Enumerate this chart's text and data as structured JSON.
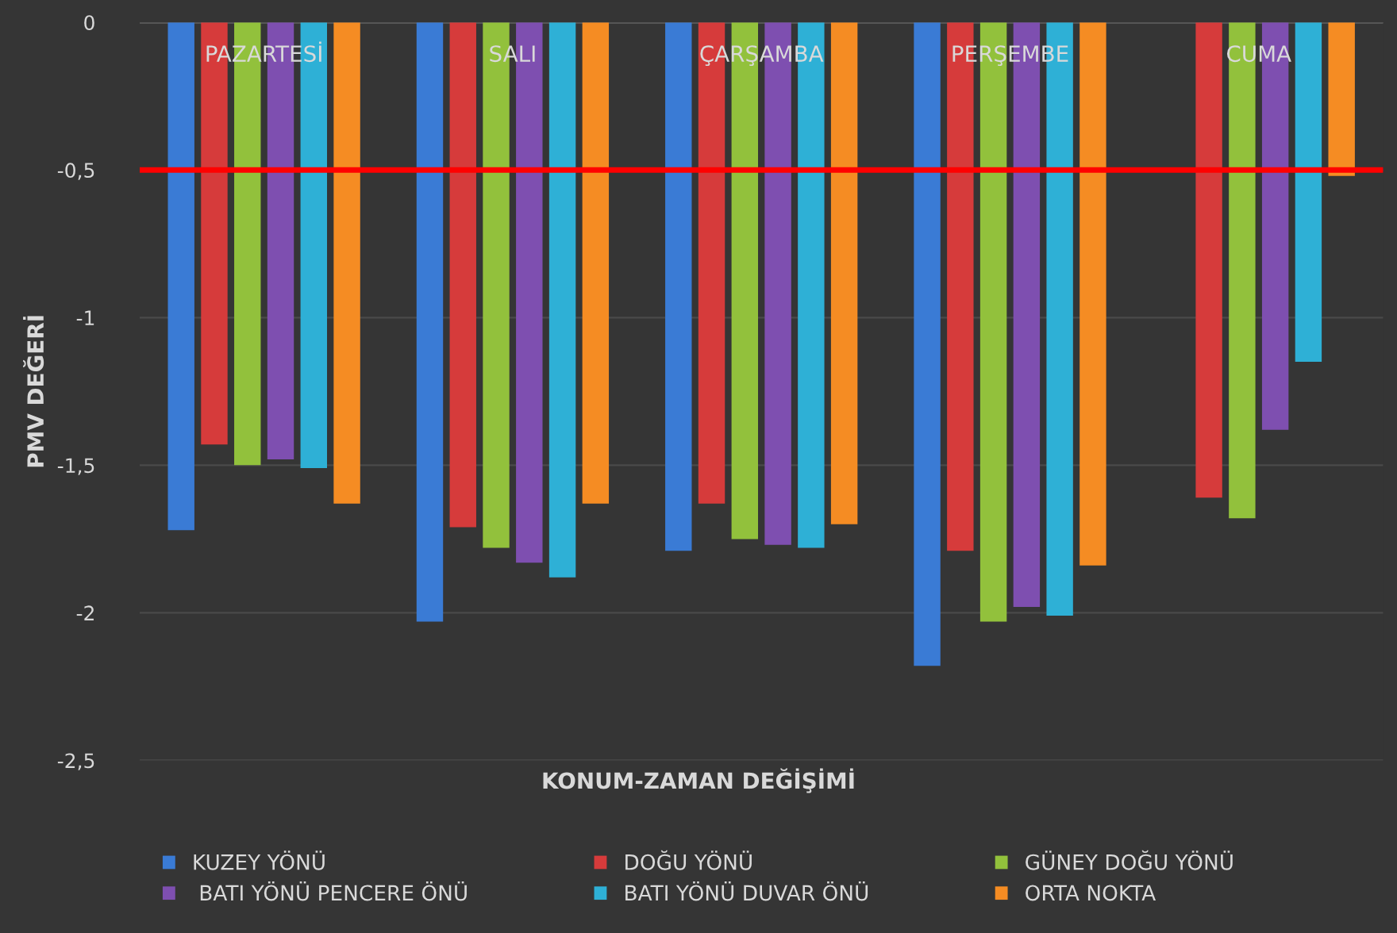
{
  "chart_data": {
    "type": "bar",
    "xlabel": "KONUM-ZAMAN DEĞİŞİMİ",
    "ylabel": "PMV DEĞERİ",
    "categories": [
      "PAZARTESİ",
      "SALI",
      "ÇARŞAMBA",
      "PERŞEMBE",
      "CUMA"
    ],
    "series": [
      {
        "name": "KUZEY YÖNÜ",
        "color": "#3a7bd5",
        "values": [
          -1.72,
          -2.03,
          -1.79,
          -2.18,
          null
        ]
      },
      {
        "name": "DOĞU YÖNÜ",
        "color": "#d63b3b",
        "values": [
          -1.43,
          -1.71,
          -1.63,
          -1.79,
          -1.61
        ]
      },
      {
        "name": "GÜNEY DOĞU YÖNÜ",
        "color": "#92c13c",
        "values": [
          -1.5,
          -1.78,
          -1.75,
          -2.03,
          -1.68
        ]
      },
      {
        "name": " BATI YÖNÜ PENCERE ÖNÜ",
        "color": "#7e4fb0",
        "values": [
          -1.48,
          -1.83,
          -1.77,
          -1.98,
          -1.38
        ]
      },
      {
        "name": "BATI YÖNÜ DUVAR ÖNÜ",
        "color": "#2eb0d6",
        "values": [
          -1.51,
          -1.88,
          -1.78,
          -2.01,
          -1.15
        ]
      },
      {
        "name": "ORTA NOKTA",
        "color": "#f58c23",
        "values": [
          -1.63,
          -1.63,
          -1.7,
          -1.84,
          -0.52
        ]
      }
    ],
    "ylim": [
      -2.5,
      0
    ],
    "yticks": [
      {
        "value": -2.5,
        "label": "-2,5"
      },
      -2,
      {
        "value": -1.5,
        "label": "-1,5"
      },
      -1,
      {
        "value": -0.5,
        "label": "-0,5"
      },
      0
    ],
    "grid": "y",
    "legend": "bottom",
    "ref_lines": [
      {
        "axis": "y",
        "value": -0.5,
        "color": "#ff0000"
      }
    ]
  }
}
